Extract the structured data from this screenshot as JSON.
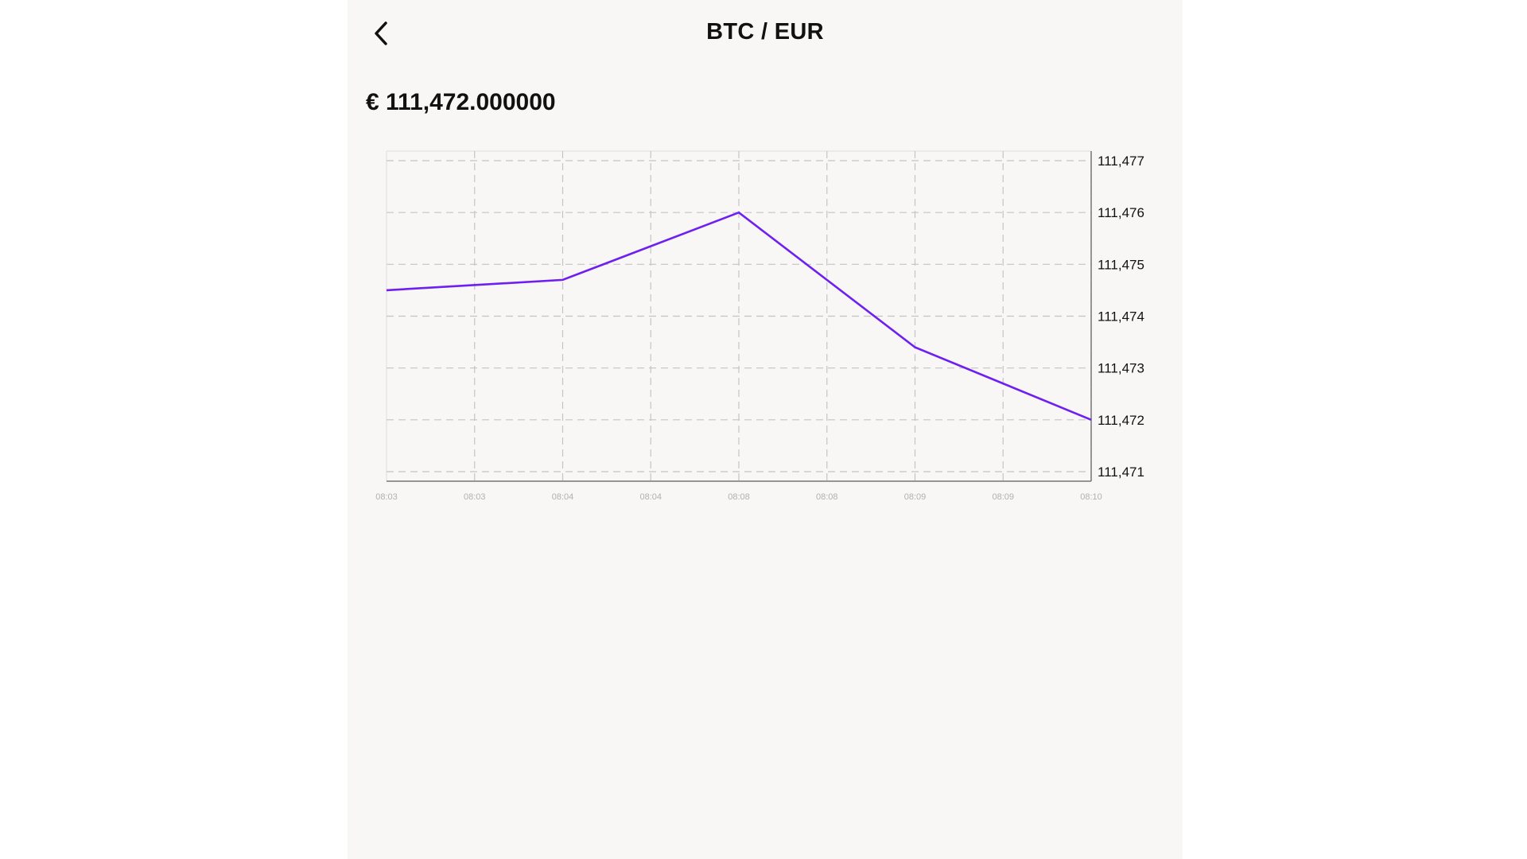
{
  "header": {
    "title": "BTC / EUR",
    "back_icon": "chevron-left-icon"
  },
  "price": {
    "display": "€ 111,472.000000"
  },
  "colors": {
    "line": "#6f1ff0",
    "grid": "#c4c4c8",
    "background": "#f8f7f5"
  },
  "chart_data": {
    "type": "line",
    "x": [
      "08:03",
      "08:03",
      "08:04",
      "08:04",
      "08:08",
      "08:08",
      "08:09",
      "08:09",
      "08:10"
    ],
    "series": [
      {
        "values": [
          111474.5,
          null,
          111474.7,
          null,
          111476.0,
          null,
          111473.4,
          null,
          111472.0
        ]
      }
    ],
    "yticks": [
      "111,477",
      "111,476",
      "111,475",
      "111,474",
      "111,473",
      "111,472",
      "111,471"
    ],
    "ylim": [
      111471,
      111477
    ],
    "grid": true,
    "y_axis_position": "right"
  }
}
